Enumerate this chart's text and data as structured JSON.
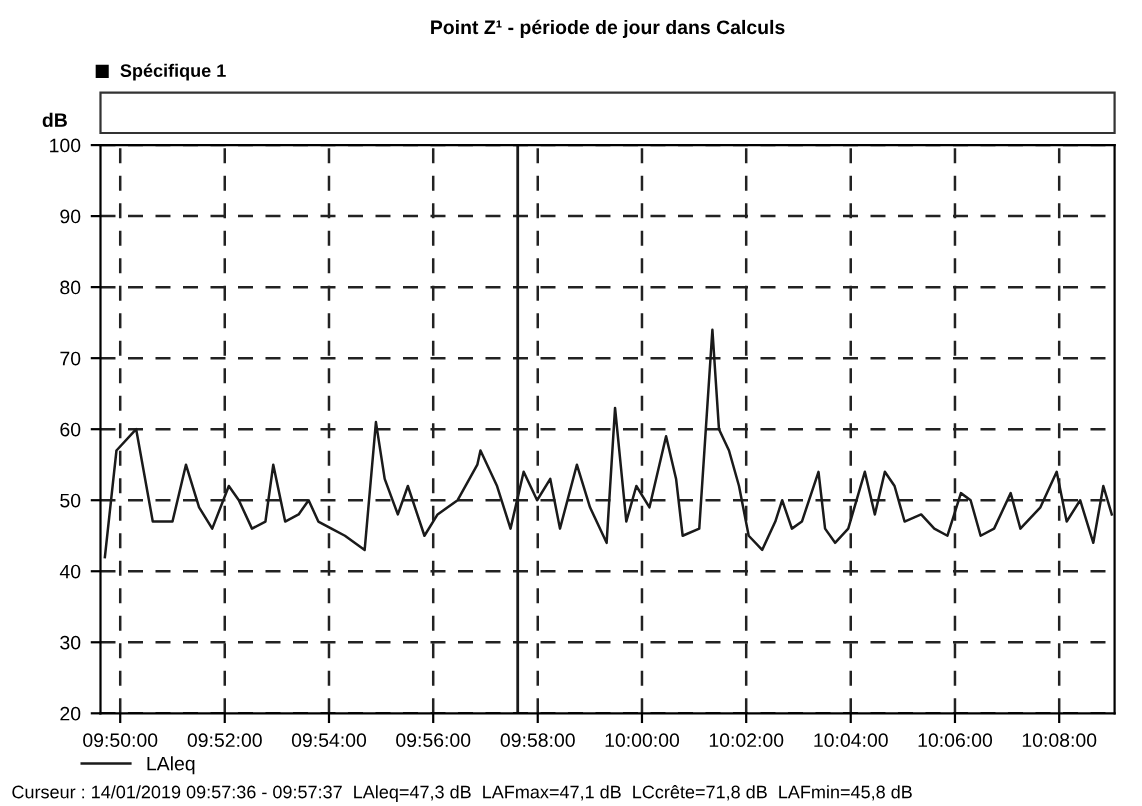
{
  "chart_data": {
    "type": "line",
    "title": "Point Z¹ - période de jour dans Calculs",
    "ylabel": "dB",
    "annotations": [
      "Spécifique 1",
      "Curseur : 14/01/2019 09:57:36 - 09:57:37  LAleq=47,3 dB  LAFmax=47,1 dB  LCcrête=71,8 dB  LAFmin=45,8 dB"
    ],
    "series": [
      {
        "name": "LAleq",
        "color": "#1a1a1a",
        "x": [
          9.8284,
          9.8321,
          9.8384,
          9.8437,
          9.85,
          9.8543,
          9.8585,
          9.8627,
          9.868,
          9.8712,
          9.8754,
          9.8797,
          9.8822,
          9.886,
          9.8903,
          9.8935,
          9.8966,
          9.9008,
          9.9051,
          9.9114,
          9.915,
          9.9178,
          9.922,
          9.9252,
          9.9305,
          9.9347,
          9.9411,
          9.9474,
          9.9484,
          9.9537,
          9.958,
          9.9622,
          9.9665,
          9.9707,
          9.9738,
          9.9792,
          9.9834,
          9.9887,
          9.9914,
          9.995,
          9.9982,
          10.0024,
          10.0077,
          10.0109,
          10.013,
          10.0183,
          10.0204,
          10.0225,
          10.0246,
          10.0278,
          10.031,
          10.0341,
          10.0384,
          10.0426,
          10.0448,
          10.0479,
          10.0511,
          10.0564,
          10.0585,
          10.0617,
          10.0659,
          10.0712,
          10.0744,
          10.0776,
          10.0807,
          10.0839,
          10.0892,
          10.0934,
          10.0976,
          10.1019,
          10.105,
          10.1082,
          10.1125,
          10.1178,
          10.1209,
          10.1273,
          10.1325,
          10.1357,
          10.14,
          10.1442,
          10.1474,
          10.1501
        ],
        "values": [
          42,
          57,
          60,
          47,
          47,
          55,
          49,
          46,
          52,
          50,
          46,
          47,
          55,
          47,
          48,
          50,
          47,
          46,
          45,
          43,
          61,
          53,
          48,
          52,
          45,
          48,
          50,
          55,
          57,
          52,
          46,
          54,
          50,
          53,
          46,
          55,
          49,
          44,
          63,
          47,
          52,
          49,
          59,
          53,
          45,
          46,
          60,
          74,
          60,
          57,
          52,
          45,
          43,
          47,
          50,
          46,
          47,
          54,
          46,
          44,
          46,
          54,
          48,
          54,
          52,
          47,
          48,
          46,
          45,
          51,
          50,
          45,
          46,
          51,
          46,
          49,
          54,
          47,
          50,
          44,
          52,
          48
        ]
      }
    ],
    "xlim": [
      9.827,
      10.151
    ],
    "ylim": [
      20,
      100
    ],
    "xticks": [
      {
        "value": 9.8333,
        "label": "09:50:00"
      },
      {
        "value": 9.8667,
        "label": "09:52:00"
      },
      {
        "value": 9.9,
        "label": "09:54:00"
      },
      {
        "value": 9.9333,
        "label": "09:56:00"
      },
      {
        "value": 9.9667,
        "label": "09:58:00"
      },
      {
        "value": 10.0,
        "label": "10:00:00"
      },
      {
        "value": 10.0333,
        "label": "10:02:00"
      },
      {
        "value": 10.0667,
        "label": "10:04:00"
      },
      {
        "value": 10.1,
        "label": "10:06:00"
      },
      {
        "value": 10.1333,
        "label": "10:08:00"
      }
    ],
    "yticks": [
      20,
      30,
      40,
      50,
      60,
      70,
      80,
      90,
      100
    ],
    "ref_lines": [
      {
        "axis": "x",
        "value": 9.9603,
        "color": "#1a1a1a",
        "line_style": "solid"
      }
    ],
    "grid": true,
    "legend": "bottom left",
    "marker": "none",
    "line_style": "solid"
  }
}
